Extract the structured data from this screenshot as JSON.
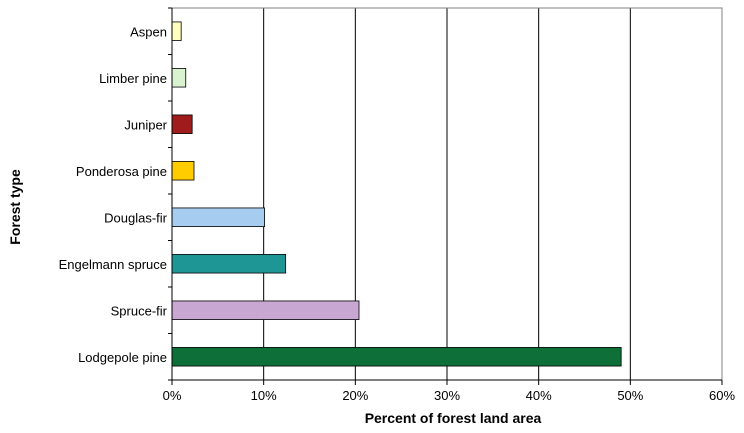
{
  "chart_data": {
    "type": "bar",
    "orientation": "horizontal",
    "categories": [
      "Aspen",
      "Limber pine",
      "Juniper",
      "Ponderosa pine",
      "Douglas-fir",
      "Engelmann spruce",
      "Spruce-fir",
      "Lodgepole pine"
    ],
    "values": [
      1.0,
      1.5,
      2.2,
      2.4,
      10.1,
      12.4,
      20.4,
      49.0
    ],
    "colors": [
      "#ffffc0",
      "#d9f2d0",
      "#a01c1c",
      "#ffcc00",
      "#a6cdf0",
      "#1e9696",
      "#c8a8d2",
      "#0e7038"
    ],
    "xlabel": "Percent of forest land area",
    "ylabel": "Forest type",
    "xlim": [
      0,
      60
    ],
    "xticks": [
      0,
      10,
      20,
      30,
      40,
      50,
      60
    ],
    "xtick_labels": [
      "0%",
      "10%",
      "20%",
      "30%",
      "40%",
      "50%",
      "60%"
    ],
    "grid": "vertical",
    "legend": "none"
  }
}
